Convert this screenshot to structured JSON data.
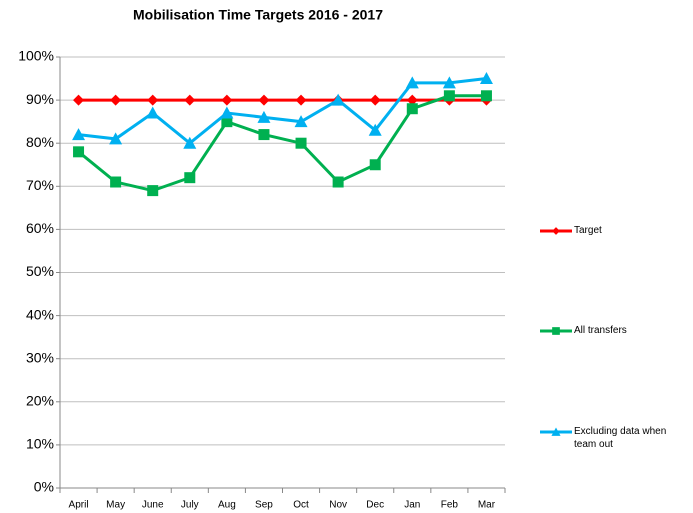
{
  "chart_data": {
    "type": "line",
    "title": "Mobilisation Time Targets 2016 - 2017",
    "categories": [
      "April",
      "May",
      "June",
      "July",
      "Aug",
      "Sep",
      "Oct",
      "Nov",
      "Dec",
      "Jan",
      "Feb",
      "Mar"
    ],
    "series": [
      {
        "name": "Target",
        "color": "#ff0000",
        "marker": "diamond",
        "values": [
          90,
          90,
          90,
          90,
          90,
          90,
          90,
          90,
          90,
          90,
          90,
          90
        ]
      },
      {
        "name": "All transfers",
        "color": "#00b050",
        "marker": "square",
        "values": [
          78,
          71,
          69,
          72,
          85,
          82,
          80,
          71,
          75,
          88,
          91,
          91
        ]
      },
      {
        "name": "Excluding data when team out",
        "color": "#00b0f0",
        "marker": "triangle",
        "values": [
          82,
          81,
          87,
          80,
          87,
          86,
          85,
          90,
          83,
          94,
          94,
          95
        ]
      }
    ],
    "ylim": [
      0,
      100
    ],
    "yticks": [
      {
        "value": 0,
        "label": "0%"
      },
      {
        "value": 10,
        "label": "10%"
      },
      {
        "value": 20,
        "label": "20%"
      },
      {
        "value": 30,
        "label": "30%"
      },
      {
        "value": 40,
        "label": "40%"
      },
      {
        "value": 50,
        "label": "50%"
      },
      {
        "value": 60,
        "label": "60%"
      },
      {
        "value": 70,
        "label": "70%"
      },
      {
        "value": 80,
        "label": "80%"
      },
      {
        "value": 90,
        "label": "90%"
      },
      {
        "value": 100,
        "label": "100%"
      }
    ],
    "grid": true,
    "legend": "right"
  }
}
